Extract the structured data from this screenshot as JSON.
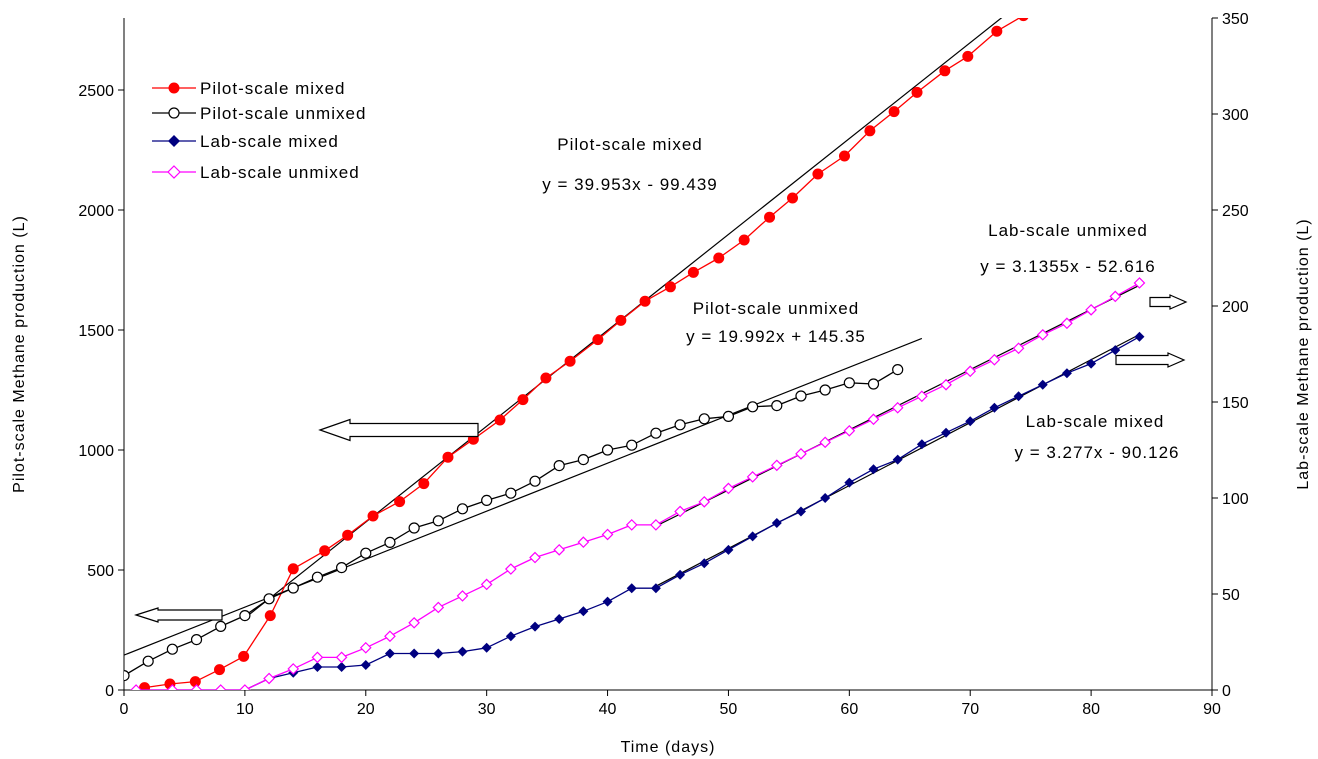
{
  "chart_data": {
    "type": "line",
    "xlabel": "Time  (days)",
    "ylabel_left": "Pilot-scale Methane production (L)",
    "ylabel_right": "Lab-scale Methane production (L)",
    "xlim": [
      0,
      90
    ],
    "ylim_left": [
      0,
      2800
    ],
    "ylim_right": [
      0,
      350
    ],
    "x_ticks": [
      "0",
      "10",
      "20",
      "30",
      "40",
      "50",
      "60",
      "70",
      "80",
      "90"
    ],
    "y_left_ticks": [
      "0",
      "500",
      "1000",
      "1500",
      "2000",
      "2500"
    ],
    "y_right_ticks": [
      "0",
      "50",
      "100",
      "150",
      "200",
      "250",
      "300",
      "350"
    ],
    "grid": false,
    "legend_position": "top-left",
    "series": [
      {
        "name": "Pilot-scale mixed",
        "axis": "left",
        "color": "#ff0000",
        "marker": "filled-circle",
        "x": [
          1.7,
          3.8,
          5.9,
          7.9,
          9.9,
          12.1,
          14.0,
          16.6,
          18.5,
          20.6,
          22.8,
          24.8,
          26.8,
          28.9,
          31.1,
          33.0,
          34.9,
          36.9,
          39.2,
          41.1,
          43.1,
          45.2,
          47.1,
          49.2,
          51.3,
          53.4,
          55.3,
          57.4,
          59.6,
          61.7,
          63.7,
          65.6,
          67.9,
          69.8,
          72.2,
          74.4
        ],
        "y": [
          10,
          25,
          35,
          85,
          140,
          310,
          505,
          580,
          645,
          725,
          785,
          860,
          970,
          1045,
          1125,
          1210,
          1300,
          1370,
          1460,
          1540,
          1620,
          1680,
          1740,
          1800,
          1875,
          1970,
          2050,
          2150,
          2225,
          2330,
          2410,
          2490,
          2580,
          2640,
          2745,
          2810
        ]
      },
      {
        "name": "Pilot-scale unmixed",
        "axis": "left",
        "color": "#000000",
        "marker": "open-circle",
        "x": [
          0,
          2,
          4,
          6,
          8,
          10,
          12,
          14,
          16,
          18,
          20,
          22,
          24,
          26,
          28,
          30,
          32,
          34,
          36,
          38,
          40,
          42,
          44,
          46,
          48,
          50,
          52,
          54,
          56,
          58,
          60,
          62,
          64
        ],
        "y": [
          60,
          120,
          170,
          210,
          265,
          310,
          380,
          425,
          470,
          510,
          570,
          615,
          675,
          705,
          755,
          790,
          820,
          870,
          935,
          960,
          1000,
          1020,
          1070,
          1105,
          1130,
          1140,
          1180,
          1185,
          1225,
          1250,
          1280,
          1275,
          1335
        ]
      },
      {
        "name": "Lab-scale mixed",
        "axis": "right",
        "color": "#000080",
        "marker": "filled-diamond",
        "x": [
          1,
          4,
          6,
          8,
          10,
          12,
          14,
          16,
          18,
          20,
          22,
          24,
          26,
          28,
          30,
          32,
          34,
          36,
          38,
          40,
          42,
          44,
          46,
          48,
          50,
          52,
          54,
          56,
          58,
          60,
          62,
          64,
          66,
          68,
          70,
          72,
          74,
          76,
          78,
          80,
          82,
          84
        ],
        "y": [
          0,
          0,
          0,
          0,
          0,
          6,
          9,
          12,
          12,
          13,
          19,
          19,
          19,
          20,
          22,
          28,
          33,
          37,
          41,
          46,
          53,
          53,
          60,
          66,
          73,
          80,
          87,
          93,
          100,
          108,
          115,
          120,
          128,
          134,
          140,
          147,
          153,
          159,
          165,
          170,
          177,
          184
        ]
      },
      {
        "name": "Lab-scale unmixed",
        "axis": "right",
        "color": "#ff00ff",
        "marker": "open-diamond",
        "x": [
          1,
          4,
          6,
          8,
          10,
          12,
          14,
          16,
          18,
          20,
          22,
          24,
          26,
          28,
          30,
          32,
          34,
          36,
          38,
          40,
          42,
          44,
          46,
          48,
          50,
          52,
          54,
          56,
          58,
          60,
          62,
          64,
          66,
          68,
          70,
          72,
          74,
          76,
          78,
          80,
          82,
          84
        ],
        "y": [
          0,
          0,
          0,
          0,
          0,
          6,
          11,
          17,
          17,
          22,
          28,
          35,
          43,
          49,
          55,
          63,
          69,
          73,
          77,
          81,
          86,
          86,
          93,
          98,
          105,
          111,
          117,
          123,
          129,
          135,
          141,
          147,
          153,
          159,
          166,
          172,
          178,
          185,
          191,
          198,
          205,
          212
        ]
      }
    ],
    "trendlines": [
      {
        "series": "Pilot-scale mixed",
        "axis": "left",
        "slope": 39.953,
        "intercept": -99.439,
        "x_range": [
          10,
          90
        ]
      },
      {
        "series": "Pilot-scale unmixed",
        "axis": "left",
        "slope": 19.992,
        "intercept": 145.35,
        "x_range": [
          0,
          66
        ]
      },
      {
        "series": "Lab-scale unmixed",
        "axis": "right",
        "slope": 3.1355,
        "intercept": -52.616,
        "x_range": [
          44,
          84
        ]
      },
      {
        "series": "Lab-scale mixed",
        "axis": "right",
        "slope": 3.277,
        "intercept": -90.126,
        "x_range": [
          44,
          84
        ]
      }
    ],
    "annotations": [
      {
        "id": "pm-name",
        "text": "Pilot-scale mixed"
      },
      {
        "id": "pm-eq",
        "text": "y = 39.953x - 99.439"
      },
      {
        "id": "pu-name",
        "text": "Pilot-scale unmixed"
      },
      {
        "id": "pu-eq",
        "text": "y = 19.992x + 145.35"
      },
      {
        "id": "lu-name",
        "text": "Lab-scale unmixed"
      },
      {
        "id": "lu-eq",
        "text": "y = 3.1355x - 52.616"
      },
      {
        "id": "lm-name",
        "text": "Lab-scale mixed"
      },
      {
        "id": "lm-eq",
        "text": "y = 3.277x - 90.126"
      }
    ],
    "arrows": [
      {
        "id": "arrow-pu-left",
        "direction": "left",
        "axis": "left"
      },
      {
        "id": "arrow-pilot-left",
        "direction": "left",
        "axis": "left"
      },
      {
        "id": "arrow-lu-right",
        "direction": "right",
        "axis": "right"
      },
      {
        "id": "arrow-lm-right",
        "direction": "right",
        "axis": "right"
      }
    ]
  }
}
